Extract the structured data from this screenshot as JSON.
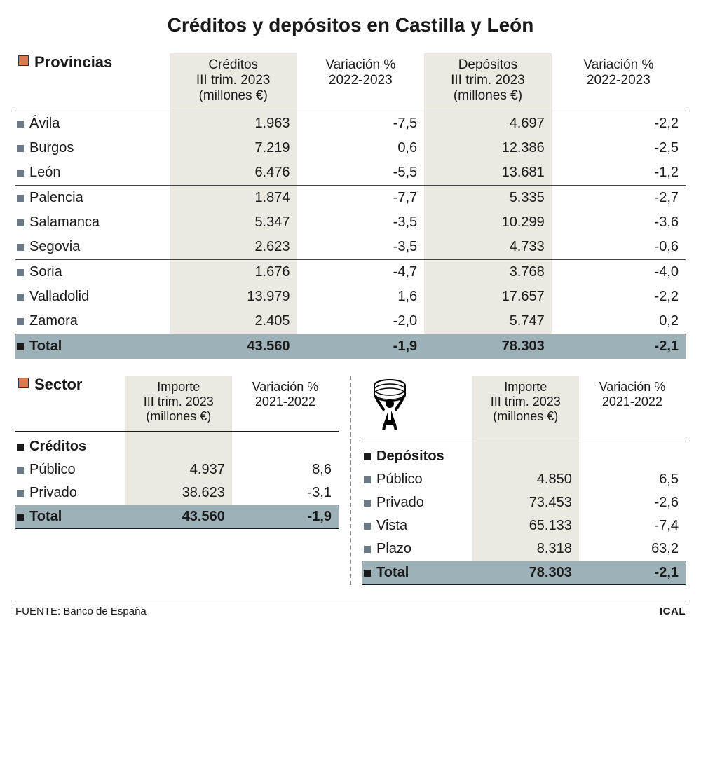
{
  "title": "Créditos y depósitos en Castilla y León",
  "colors": {
    "shade_bg": "#ebe9e1",
    "total_bg": "#9db2b8",
    "bullet_section": "#d97b4f",
    "bullet_row": "#6b7a86",
    "bullet_dark": "#1a1a1a",
    "text": "#1a1a1a",
    "rule": "#1a1a1a"
  },
  "provinces": {
    "section_label": "Provincias",
    "columns": [
      {
        "l1": "Créditos",
        "l2": "III trim. 2023",
        "l3": "(millones €)",
        "shaded": true
      },
      {
        "l1": "Variación %",
        "l2": "2022-2023",
        "l3": "",
        "shaded": false
      },
      {
        "l1": "Depósitos",
        "l2": "III trim. 2023",
        "l3": "(millones €)",
        "shaded": true
      },
      {
        "l1": "Variación %",
        "l2": "2022-2023",
        "l3": "",
        "shaded": false
      }
    ],
    "groups": [
      [
        {
          "name": "Ávila",
          "creditos": "1.963",
          "var_c": "-7,5",
          "depositos": "4.697",
          "var_d": "-2,2"
        },
        {
          "name": "Burgos",
          "creditos": "7.219",
          "var_c": "0,6",
          "depositos": "12.386",
          "var_d": "-2,5"
        },
        {
          "name": "León",
          "creditos": "6.476",
          "var_c": "-5,5",
          "depositos": "13.681",
          "var_d": "-1,2"
        }
      ],
      [
        {
          "name": "Palencia",
          "creditos": "1.874",
          "var_c": "-7,7",
          "depositos": "5.335",
          "var_d": "-2,7"
        },
        {
          "name": "Salamanca",
          "creditos": "5.347",
          "var_c": "-3,5",
          "depositos": "10.299",
          "var_d": "-3,6"
        },
        {
          "name": "Segovia",
          "creditos": "2.623",
          "var_c": "-3,5",
          "depositos": "4.733",
          "var_d": "-0,6"
        }
      ],
      [
        {
          "name": "Soria",
          "creditos": "1.676",
          "var_c": "-4,7",
          "depositos": "3.768",
          "var_d": "-4,0"
        },
        {
          "name": "Valladolid",
          "creditos": "13.979",
          "var_c": "1,6",
          "depositos": "17.657",
          "var_d": "-2,2"
        },
        {
          "name": "Zamora",
          "creditos": "2.405",
          "var_c": "-2,0",
          "depositos": "5.747",
          "var_d": "0,2"
        }
      ]
    ],
    "total": {
      "name": "Total",
      "creditos": "43.560",
      "var_c": "-1,9",
      "depositos": "78.303",
      "var_d": "-2,1"
    }
  },
  "sector": {
    "section_label": "Sector",
    "columns": [
      {
        "l1": "Importe",
        "l2": "III trim. 2023",
        "l3": "(millones €)",
        "shaded": true
      },
      {
        "l1": "Variación %",
        "l2": "2021-2022",
        "l3": "",
        "shaded": false
      }
    ],
    "left": {
      "heading": "Créditos",
      "rows": [
        {
          "name": "Público",
          "importe": "4.937",
          "var": "8,6"
        },
        {
          "name": "Privado",
          "importe": "38.623",
          "var": "-3,1"
        }
      ],
      "total": {
        "name": "Total",
        "importe": "43.560",
        "var": "-1,9"
      }
    },
    "right": {
      "heading": "Depósitos",
      "rows": [
        {
          "name": "Público",
          "importe": "4.850",
          "var": "6,5"
        },
        {
          "name": "Privado",
          "importe": "73.453",
          "var": "-2,6"
        },
        {
          "name": "Vista",
          "importe": "65.133",
          "var": "-7,4"
        },
        {
          "name": "Plazo",
          "importe": "8.318",
          "var": "63,2"
        }
      ],
      "total": {
        "name": "Total",
        "importe": "78.303",
        "var": "-2,1"
      }
    }
  },
  "footer": {
    "source_label": "FUENTE:",
    "source": "Banco de España",
    "agency": "ICAL"
  }
}
